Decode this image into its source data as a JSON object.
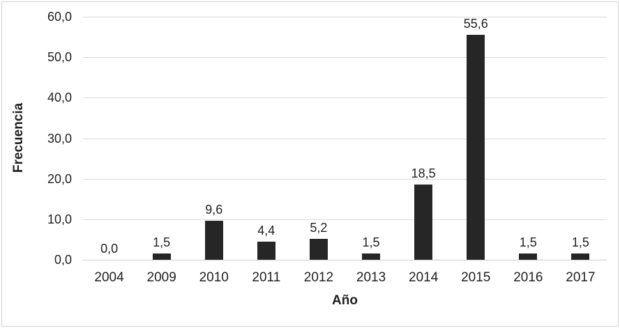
{
  "chart_data": {
    "type": "bar",
    "title": "",
    "xlabel": "Año",
    "ylabel": "Frecuencia",
    "categories": [
      "2004",
      "2009",
      "2010",
      "2011",
      "2012",
      "2013",
      "2014",
      "2015",
      "2016",
      "2017"
    ],
    "values": [
      0.0,
      1.5,
      9.6,
      4.4,
      5.2,
      1.5,
      18.5,
      55.6,
      1.5,
      1.5
    ],
    "value_labels": [
      "0,0",
      "1,5",
      "9,6",
      "4,4",
      "5,2",
      "1,5",
      "18,5",
      "55,6",
      "1,5",
      "1,5"
    ],
    "y_ticks": [
      0,
      10,
      20,
      30,
      40,
      50,
      60
    ],
    "y_tick_labels": [
      "0,0",
      "10,0",
      "20,0",
      "30,0",
      "40,0",
      "50,0",
      "60,0"
    ],
    "ylim": [
      0,
      60
    ],
    "grid": "horizontal",
    "legend": null,
    "data_labels_position": "outside-end",
    "colors": {
      "bar": "#262626",
      "gridline": "#d9d9d9",
      "axis_line": "#cfcfcf",
      "text": "#1f1f1f",
      "background": "#ffffff",
      "frame_border": "#d2d2d2"
    }
  }
}
